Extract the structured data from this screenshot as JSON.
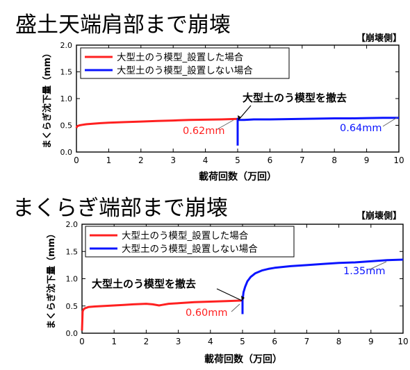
{
  "chart_data": [
    {
      "type": "line",
      "heading": "盛土天端肩部まで崩壊",
      "side_label": "【崩壊側】",
      "xlabel": "載荷回数（万回）",
      "ylabel": "まくらぎ沈下量（mm）",
      "xlim": [
        0,
        10
      ],
      "ylim": [
        0,
        2.0
      ],
      "xticks": [
        0,
        1,
        2,
        3,
        4,
        5,
        6,
        7,
        8,
        9,
        10
      ],
      "yticks": [
        "0.0",
        "0.5",
        "1.0",
        "1.5",
        "2.0"
      ],
      "legend_placement": "top-left",
      "series": [
        {
          "name": "大型土のう模型_設置した場合",
          "color": "#ff2020",
          "x": [
            0,
            0.02,
            0.05,
            0.1,
            0.2,
            0.3,
            0.5,
            0.75,
            1.0,
            1.5,
            2.0,
            2.5,
            3.0,
            3.5,
            4.0,
            4.5,
            5.0
          ],
          "y": [
            0.45,
            0.48,
            0.49,
            0.5,
            0.51,
            0.52,
            0.53,
            0.54,
            0.55,
            0.56,
            0.57,
            0.58,
            0.59,
            0.6,
            0.605,
            0.61,
            0.62
          ]
        },
        {
          "name": "大型土のう模型_設置しない場合",
          "color": "#0a14ff",
          "x": [
            5.0,
            5.0,
            5.02,
            5.05,
            5.1,
            5.2,
            5.5,
            6.0,
            6.5,
            7.0,
            7.5,
            8.0,
            8.5,
            9.0,
            9.5,
            10.0
          ],
          "y": [
            0.12,
            0.62,
            0.6,
            0.6,
            0.6,
            0.6,
            0.61,
            0.61,
            0.615,
            0.62,
            0.625,
            0.63,
            0.63,
            0.635,
            0.64,
            0.64
          ]
        }
      ],
      "annotations": {
        "removal": "大型土のう模型を撤去",
        "red_value": "0.62mm",
        "blue_value": "0.64mm"
      }
    },
    {
      "type": "line",
      "heading": "まくらぎ端部まで崩壊",
      "side_label": "【崩壊側】",
      "xlabel": "載荷回数（万回）",
      "ylabel": "まくらぎ沈下量（mm）",
      "xlim": [
        0,
        10
      ],
      "ylim": [
        0,
        2.0
      ],
      "xticks": [
        0,
        1,
        2,
        3,
        4,
        5,
        6,
        7,
        8,
        9,
        10
      ],
      "yticks": [
        "0.0",
        "0.5",
        "1.0",
        "1.5",
        "2.0"
      ],
      "legend_placement": "top-left",
      "series": [
        {
          "name": "大型土のう模型_設置した場合",
          "color": "#ff2020",
          "x": [
            0,
            0.02,
            0.05,
            0.1,
            0.2,
            0.4,
            0.7,
            1.0,
            1.3,
            1.6,
            2.0,
            2.2,
            2.4,
            2.5,
            2.7,
            3.0,
            3.5,
            4.0,
            4.5,
            5.0
          ],
          "y": [
            0.05,
            0.4,
            0.44,
            0.46,
            0.48,
            0.49,
            0.5,
            0.51,
            0.52,
            0.53,
            0.54,
            0.53,
            0.51,
            0.52,
            0.54,
            0.55,
            0.57,
            0.58,
            0.59,
            0.6
          ]
        },
        {
          "name": "大型土のう模型_設置しない場合",
          "color": "#0a14ff",
          "x": [
            5.0,
            5.0,
            5.03,
            5.08,
            5.15,
            5.25,
            5.4,
            5.6,
            5.8,
            6.0,
            6.5,
            7.0,
            7.5,
            8.0,
            8.5,
            9.0,
            9.5,
            10.0
          ],
          "y": [
            0.35,
            0.6,
            0.75,
            0.85,
            0.95,
            1.03,
            1.1,
            1.15,
            1.18,
            1.2,
            1.23,
            1.25,
            1.27,
            1.29,
            1.3,
            1.32,
            1.34,
            1.35
          ]
        }
      ],
      "annotations": {
        "removal": "大型土のう模型を撤去",
        "red_value": "0.60mm",
        "blue_value": "1.35mm"
      }
    }
  ]
}
